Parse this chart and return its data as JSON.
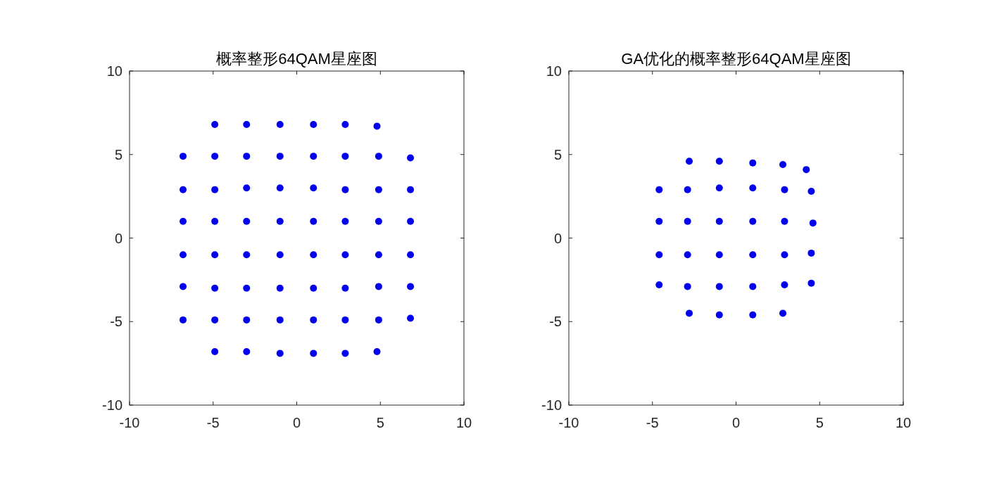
{
  "chart_data": [
    {
      "type": "scatter",
      "title": "概率整形64QAM星座图",
      "color": "#0000ee",
      "marker": "circle",
      "xlim": [
        -10,
        10
      ],
      "ylim": [
        -10,
        10
      ],
      "xticks": [
        -10,
        -5,
        0,
        5,
        10
      ],
      "yticks": [
        -10,
        -5,
        0,
        5,
        10
      ],
      "x": [
        -4.9,
        -3,
        -1,
        1,
        2.9,
        4.8,
        -6.8,
        -4.9,
        -3,
        -1,
        1,
        2.9,
        4.9,
        6.8,
        -6.8,
        -4.9,
        -3,
        -1,
        1,
        2.9,
        4.9,
        6.8,
        -6.8,
        -4.9,
        -3,
        -1,
        1,
        2.9,
        4.9,
        6.8,
        -6.8,
        -4.9,
        -3,
        -1,
        1,
        2.9,
        4.9,
        6.8,
        -6.8,
        -4.9,
        -3,
        -1,
        1,
        2.9,
        4.9,
        6.8,
        -6.8,
        -4.9,
        -3,
        -1,
        1,
        2.9,
        4.9,
        6.8,
        -4.9,
        -3,
        -1,
        1,
        2.9,
        4.8
      ],
      "values": [
        6.8,
        6.8,
        6.8,
        6.8,
        6.8,
        6.7,
        4.9,
        4.9,
        4.9,
        4.9,
        4.9,
        4.9,
        4.9,
        4.8,
        2.9,
        2.9,
        3,
        3,
        3,
        2.9,
        2.9,
        2.9,
        1,
        1,
        1,
        1,
        1,
        1,
        1,
        1,
        -1,
        -1,
        -1,
        -1,
        -1,
        -1,
        -1,
        -1,
        -2.9,
        -3,
        -3,
        -3,
        -3,
        -3,
        -2.9,
        -2.9,
        -4.9,
        -4.9,
        -4.9,
        -4.9,
        -4.9,
        -4.9,
        -4.9,
        -4.8,
        -6.8,
        -6.8,
        -6.9,
        -6.9,
        -6.9,
        -6.8
      ]
    },
    {
      "type": "scatter",
      "title": "GA优化的概率整形64QAM星座图",
      "color": "#0000ee",
      "marker": "circle",
      "xlim": [
        -10,
        10
      ],
      "ylim": [
        -10,
        10
      ],
      "xticks": [
        -10,
        -5,
        0,
        5,
        10
      ],
      "yticks": [
        -10,
        -5,
        0,
        5,
        10
      ],
      "x": [
        -2.8,
        -1,
        1,
        2.8,
        4.2,
        -4.6,
        -2.9,
        -1,
        1,
        2.9,
        4.5,
        -4.6,
        -2.9,
        -1,
        1,
        2.9,
        4.6,
        -4.6,
        -2.9,
        -1,
        1,
        2.9,
        4.5,
        -4.6,
        -2.9,
        -1,
        1,
        2.9,
        4.5,
        -2.8,
        -1,
        1,
        2.8
      ],
      "values": [
        4.6,
        4.6,
        4.5,
        4.4,
        4.1,
        2.9,
        2.9,
        3,
        3,
        2.9,
        2.8,
        1,
        1,
        1,
        1,
        1,
        0.9,
        -1,
        -1,
        -1,
        -1,
        -1,
        -0.9,
        -2.8,
        -2.9,
        -2.9,
        -2.9,
        -2.8,
        -2.7,
        -4.5,
        -4.6,
        -4.6,
        -4.5
      ]
    }
  ]
}
